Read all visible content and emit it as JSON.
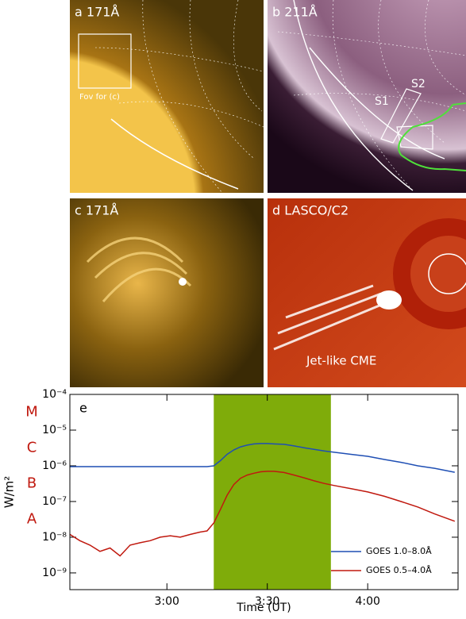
{
  "panels": [
    {
      "label": "a 171Å",
      "annotation": "Fov for (c)"
    },
    {
      "label": "b 211Å",
      "annotations": [
        "S1",
        "S2"
      ]
    },
    {
      "label": "c 171Å"
    },
    {
      "label": "d LASCO/C2",
      "annotation": "Jet-like CME"
    }
  ],
  "chart_data": {
    "type": "line",
    "panel_label": "e",
    "x_label": "Time (UT)",
    "y_label": "W/m²",
    "x": [
      151,
      154,
      157,
      160,
      163,
      166,
      169,
      172,
      175,
      178,
      181,
      184,
      187,
      190,
      192,
      194,
      196,
      198,
      200,
      202,
      204,
      206,
      208,
      210,
      212,
      215,
      218,
      221,
      224,
      227,
      230,
      235,
      240,
      245,
      250,
      255,
      260,
      266
    ],
    "series": [
      {
        "name": "GOES 1.0–8.0Å",
        "color": "#1f4fb4",
        "values": [
          9.5e-07,
          9.5e-07,
          9.5e-07,
          9.5e-07,
          9.5e-07,
          9.5e-07,
          9.5e-07,
          9.5e-07,
          9.5e-07,
          9.5e-07,
          9.5e-07,
          9.5e-07,
          9.5e-07,
          9.5e-07,
          9.5e-07,
          1e-06,
          1.4e-06,
          2.1e-06,
          2.8e-06,
          3.4e-06,
          3.8e-06,
          4.1e-06,
          4.2e-06,
          4.2e-06,
          4.1e-06,
          4e-06,
          3.6e-06,
          3.2e-06,
          2.9e-06,
          2.6e-06,
          2.4e-06,
          2.1e-06,
          1.85e-06,
          1.5e-06,
          1.25e-06,
          1e-06,
          8.5e-07,
          6.6e-07
        ]
      },
      {
        "name": "GOES 0.5–4.0Å",
        "color": "#c0190f",
        "values": [
          1.2e-08,
          8e-09,
          6e-09,
          4e-09,
          5e-09,
          3e-09,
          6e-09,
          7e-09,
          8e-09,
          1e-08,
          1.1e-08,
          1e-08,
          1.2e-08,
          1.4e-08,
          1.5e-08,
          2.5e-08,
          6e-08,
          1.5e-07,
          3e-07,
          4.5e-07,
          5.5e-07,
          6.2e-07,
          6.8e-07,
          7e-07,
          7e-07,
          6.5e-07,
          5.5e-07,
          4.6e-07,
          3.8e-07,
          3.2e-07,
          2.8e-07,
          2.3e-07,
          1.85e-07,
          1.4e-07,
          1e-07,
          7e-08,
          4.5e-08,
          2.8e-08
        ]
      }
    ],
    "xlim": [
      151,
      267
    ],
    "xticks": [
      {
        "value": 180,
        "label": "3:00"
      },
      {
        "value": 210,
        "label": "3:30"
      },
      {
        "value": 240,
        "label": "4:00"
      }
    ],
    "log_y": true,
    "ylim": [
      3.4e-10,
      0.0001
    ],
    "yticks": [
      {
        "value": 0.0001,
        "label": "10⁻⁴"
      },
      {
        "value": 1e-05,
        "label": "10⁻⁵"
      },
      {
        "value": 1e-06,
        "label": "10⁻⁶"
      },
      {
        "value": 1e-07,
        "label": "10⁻⁷"
      },
      {
        "value": 1e-08,
        "label": "10⁻⁸"
      },
      {
        "value": 1e-09,
        "label": "10⁻⁹"
      }
    ],
    "class_labels": [
      "M",
      "C",
      "B",
      "A"
    ],
    "class_color": "#c0190f",
    "shaded_span": [
      194,
      229
    ],
    "shade_color": "#7fac0a",
    "legend": "lower right"
  }
}
